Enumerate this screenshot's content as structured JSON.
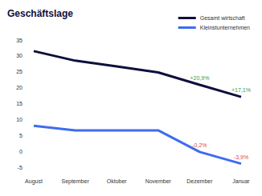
{
  "chart_data": {
    "type": "line",
    "title": "Geschäftslage",
    "categories": [
      "August",
      "September",
      "Oktober",
      "November",
      "Dezember",
      "Januar"
    ],
    "series": [
      {
        "name": "Gesamt wirtschaft",
        "color": "#0f0f3d",
        "values": [
          31.5,
          28.5,
          26.7,
          24.8,
          20.9,
          17.1
        ],
        "value_labels": [
          null,
          null,
          null,
          null,
          "+20,9%",
          "+17,1%"
        ]
      },
      {
        "name": "Kleinstunternehmen",
        "color": "#3d6cf0",
        "values": [
          8.0,
          6.6,
          6.6,
          6.6,
          -0.2,
          -3.9
        ],
        "value_labels": [
          null,
          null,
          null,
          null,
          "-0,2%",
          "-3,9%"
        ]
      }
    ],
    "ylim": [
      -5,
      35
    ],
    "yticks": [
      -5,
      0,
      5,
      10,
      15,
      20,
      25,
      30,
      35
    ],
    "grid": false,
    "legend": "top-right",
    "data_labels": true
  }
}
